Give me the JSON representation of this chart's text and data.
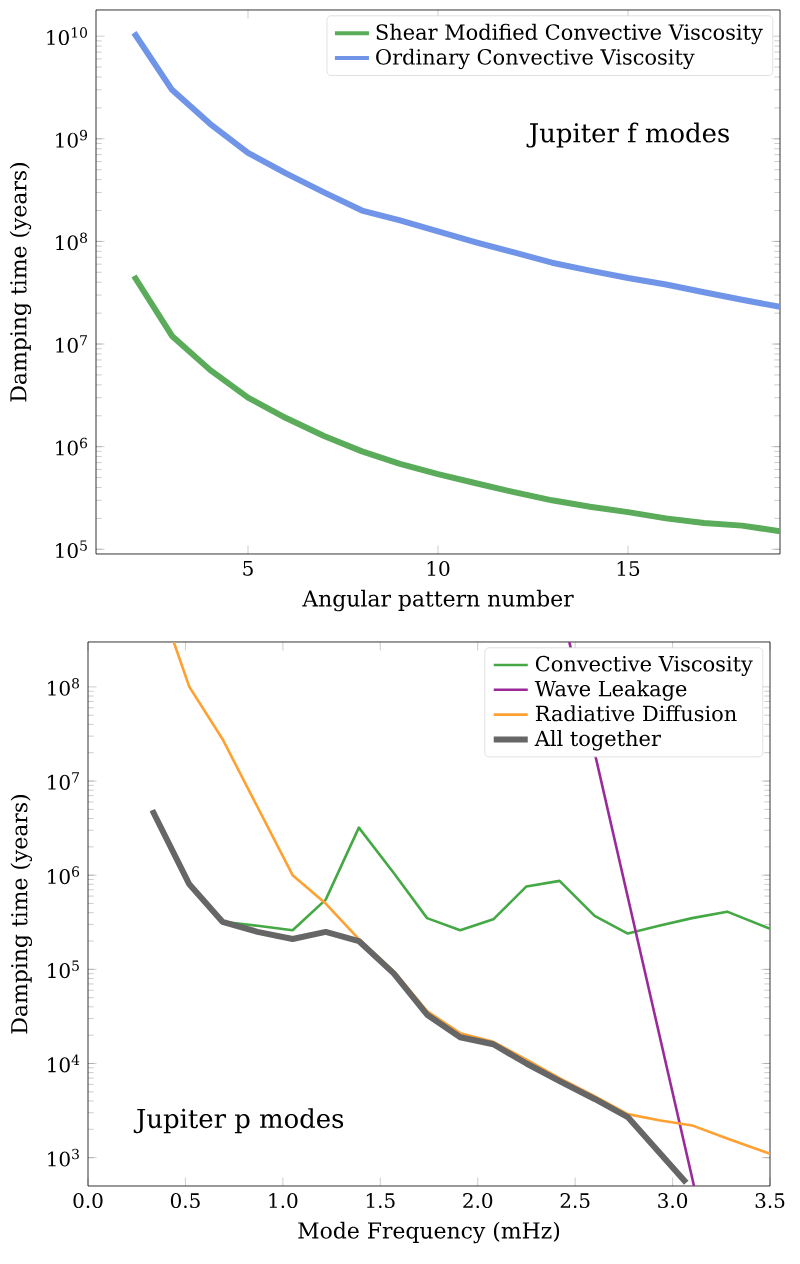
{
  "chart_data": [
    {
      "type": "line",
      "xlabel": "Angular pattern number",
      "ylabel": "Damping time (years)",
      "log": "y",
      "legend": "top right",
      "marker": "none",
      "xlim": [
        1,
        19
      ],
      "ylim": [
        90000,
        18000000000
      ],
      "xticks": [
        5,
        10,
        15
      ],
      "yticks": [
        {
          "value": 100000,
          "label": "10$^{5}$"
        },
        {
          "value": 1000000,
          "label": "10$^{6}$"
        },
        {
          "value": 10000000,
          "label": "10$^{7}$"
        },
        {
          "value": 100000000,
          "label": "10$^{8}$"
        },
        {
          "value": 1000000000,
          "label": "10$^{9}$"
        },
        {
          "value": 10000000000,
          "label": "10$^{10}$"
        }
      ],
      "annotations": [
        "Jupiter f modes"
      ],
      "series": [
        {
          "name": "Shear Modified Convective Viscosity",
          "color": "#5aac5a",
          "x": [
            2,
            3,
            4,
            5,
            6,
            7,
            8,
            9,
            10,
            11,
            12,
            13,
            14,
            15,
            16,
            17,
            18,
            19
          ],
          "values": [
            46000000,
            12000000,
            5600000,
            3000000,
            1900000,
            1270000,
            900000,
            680000,
            540000,
            440000,
            360000,
            300000,
            260000,
            230000,
            200000,
            180000,
            170000,
            150000
          ]
        },
        {
          "name": "Ordinary Convective Viscosity",
          "color": "#7095e8",
          "x": [
            2,
            3,
            4,
            5,
            6,
            7,
            8,
            9,
            10,
            11,
            12,
            13,
            14,
            15,
            16,
            17,
            18,
            19
          ],
          "values": [
            10800000000,
            3000000000,
            1400000000,
            730000000,
            460000000,
            300000000,
            200000000,
            160000000,
            125000000,
            98000000,
            78000000,
            62000000,
            52000000,
            44000000,
            38000000,
            32000000,
            27000000,
            23000000
          ]
        }
      ]
    },
    {
      "type": "line",
      "xlabel": "Mode Frequency (mHz)",
      "ylabel": "Damping time (years)",
      "log": "y",
      "legend": "top right",
      "marker": "none",
      "xlim": [
        0,
        3.5
      ],
      "ylim": [
        500,
        300000000
      ],
      "xticks": [
        {
          "value": 0,
          "label": "0.0"
        },
        {
          "value": 0.5,
          "label": "0.5"
        },
        {
          "value": 1,
          "label": "1.0"
        },
        {
          "value": 1.5,
          "label": "1.5"
        },
        {
          "value": 2,
          "label": "2.0"
        },
        {
          "value": 2.5,
          "label": "2.5"
        },
        {
          "value": 3,
          "label": "3.0"
        },
        {
          "value": 3.5,
          "label": "3.5"
        }
      ],
      "yticks": [
        {
          "value": 1000,
          "label": "10$^{3}$"
        },
        {
          "value": 10000,
          "label": "10$^{4}$"
        },
        {
          "value": 100000,
          "label": "10$^{5}$"
        },
        {
          "value": 1000000,
          "label": "10$^{6}$"
        },
        {
          "value": 10000000,
          "label": "10$^{7}$"
        },
        {
          "value": 100000000,
          "label": "10$^{8}$"
        }
      ],
      "annotations": [
        "Jupiter p modes"
      ],
      "series": [
        {
          "name": "Convective Viscosity",
          "color": "#44a844",
          "x": [
            0.33,
            0.52,
            0.69,
            0.87,
            1.05,
            1.22,
            1.39,
            1.57,
            1.74,
            1.91,
            2.08,
            2.25,
            2.42,
            2.6,
            2.77,
            2.93,
            3.1,
            3.28,
            3.5
          ],
          "values": [
            4900000,
            800000,
            320000,
            290000,
            260000,
            550000,
            3200000,
            1050000,
            350000,
            260000,
            340000,
            760000,
            870000,
            370000,
            240000,
            290000,
            350000,
            410000,
            270000
          ]
        },
        {
          "name": "Wave Leakage",
          "color": "#9a2a9a",
          "x": [
            2.47,
            3.11
          ],
          "values": [
            300000000,
            500
          ]
        },
        {
          "name": "Radiative Diffusion",
          "color": "#ffa030",
          "x": [
            0.44,
            0.52,
            0.69,
            1.05,
            1.22,
            1.39,
            1.57,
            1.74,
            1.91,
            2.08,
            2.25,
            2.42,
            2.6,
            2.77,
            2.93,
            3.1,
            3.28,
            3.5
          ],
          "values": [
            300000000,
            100000000,
            28000000,
            1000000,
            500000,
            210000,
            95000,
            36000,
            21000,
            17000,
            11000,
            7000,
            4500,
            2900,
            2500,
            2200,
            1600,
            1100
          ]
        },
        {
          "name": "All together",
          "color": "#666666",
          "x": [
            0.33,
            0.52,
            0.69,
            0.87,
            1.05,
            1.22,
            1.39,
            1.57,
            1.74,
            1.91,
            2.08,
            2.25,
            2.42,
            2.6,
            2.77,
            3.07
          ],
          "values": [
            4900000,
            800000,
            320000,
            250000,
            210000,
            250000,
            200000,
            90000,
            33000,
            19000,
            16000,
            10000,
            6500,
            4200,
            2700,
            540
          ]
        }
      ]
    }
  ]
}
